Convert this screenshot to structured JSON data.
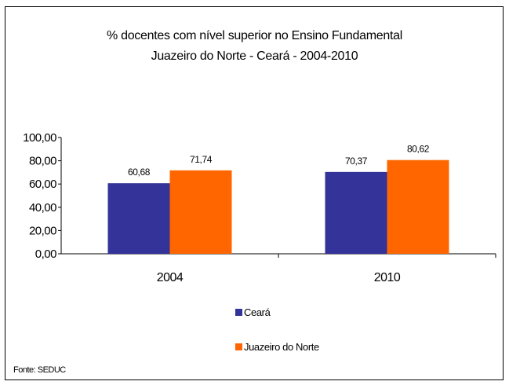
{
  "chart_data": {
    "type": "bar",
    "title": "% docentes com nível  superior no Ensino Fundamental",
    "subtitle": "Juazeiro do Norte - Ceará - 2004-2010",
    "categories": [
      "2004",
      "2010"
    ],
    "series": [
      {
        "name": "Ceará",
        "values": [
          60.68,
          70.37
        ],
        "labels": [
          "60,68",
          "70,37"
        ],
        "color": "#333399"
      },
      {
        "name": "Juazeiro do Norte",
        "values": [
          71.74,
          80.62
        ],
        "labels": [
          "71,74",
          "80,62"
        ],
        "color": "#FF6600"
      }
    ],
    "y_ticks": [
      "0,00",
      "20,00",
      "40,00",
      "60,00",
      "80,00",
      "100,00"
    ],
    "ylim": [
      0,
      100
    ],
    "grid": false,
    "legend_position": "bottom"
  },
  "source_note": "Fonte: SEDUC"
}
